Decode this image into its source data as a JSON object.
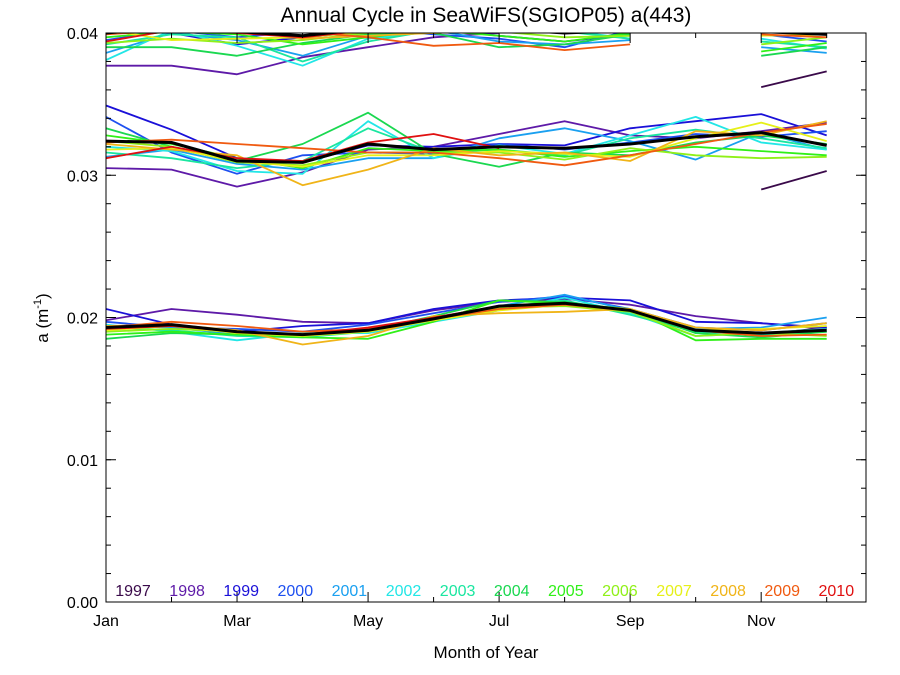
{
  "chart_data": {
    "type": "line",
    "title": "Annual Cycle in SeaWiFS(SGIOP05) a(443)",
    "xlabel": "Month of Year",
    "ylabel": "a (m",
    "ylabel_sup": "-1",
    "ylabel_close": ")",
    "xlim": [
      1,
      12
    ],
    "ylim": [
      0,
      0.04
    ],
    "x_ticks": [
      {
        "x": 1,
        "label": "Jan"
      },
      {
        "x": 3,
        "label": "Mar"
      },
      {
        "x": 5,
        "label": "May"
      },
      {
        "x": 7,
        "label": "Jul"
      },
      {
        "x": 9,
        "label": "Sep"
      },
      {
        "x": 11,
        "label": "Nov"
      }
    ],
    "y_ticks": [
      {
        "y": 0.0,
        "label": "0.00"
      },
      {
        "y": 0.01,
        "label": "0.01"
      },
      {
        "y": 0.02,
        "label": "0.02"
      },
      {
        "y": 0.03,
        "label": "0.03"
      },
      {
        "y": 0.04,
        "label": "0.04"
      }
    ],
    "legend_position": "bottom",
    "climatology_color": "#000000",
    "series": [
      {
        "name": "1997",
        "color": "#3a0a4a",
        "groups": [
          [
            null,
            null,
            null,
            null,
            null,
            null,
            null,
            null,
            null,
            null,
            0.0362,
            0.0373
          ],
          [
            null,
            null,
            null,
            null,
            null,
            null,
            null,
            null,
            null,
            null,
            0.029,
            0.0303
          ],
          [
            null,
            null,
            null,
            null,
            null,
            null,
            null,
            null,
            null,
            null,
            0.0188,
            0.0193
          ]
        ]
      },
      {
        "name": "1998",
        "color": "#5e1aa8",
        "groups": [
          [
            0.0377,
            0.0377,
            0.0371,
            0.0383,
            0.039,
            0.0397,
            0.04,
            null,
            null,
            null,
            null,
            null
          ],
          [
            0.0305,
            0.0304,
            0.0292,
            0.0302,
            0.0318,
            0.032,
            0.0329,
            0.0338,
            0.0328,
            0.0326,
            0.0331,
            0.0337
          ],
          [
            0.0198,
            0.0206,
            0.0202,
            0.0197,
            0.0196,
            0.0205,
            0.0211,
            0.0213,
            0.0209,
            0.0201,
            0.0196,
            0.0192
          ]
        ]
      },
      {
        "name": "1999",
        "color": "#1a10d8",
        "groups": [
          [
            0.0402,
            0.04,
            0.0392,
            0.0397,
            0.0401,
            0.0403,
            0.0398,
            0.0394,
            0.0399,
            null,
            0.0401,
            0.0402
          ],
          [
            0.0349,
            0.0332,
            0.0312,
            0.0309,
            0.0321,
            0.032,
            0.0322,
            0.0321,
            0.0333,
            0.0338,
            0.0343,
            0.0328
          ],
          [
            0.0206,
            0.0195,
            0.019,
            0.0194,
            0.0196,
            0.0206,
            0.0212,
            0.0214,
            0.0212,
            0.0197,
            0.0196,
            0.0193
          ]
        ]
      },
      {
        "name": "2000",
        "color": "#1e50f0",
        "groups": [
          [
            0.0395,
            0.0402,
            0.0397,
            0.0401,
            0.0403,
            0.0399,
            0.0396,
            0.039,
            0.0402,
            null,
            0.0399,
            0.0394
          ],
          [
            0.0341,
            0.0316,
            0.0301,
            0.0314,
            0.0316,
            0.0315,
            0.0322,
            0.0318,
            0.0323,
            0.0329,
            0.0327,
            0.0331
          ],
          [
            0.0197,
            0.0193,
            0.0192,
            0.019,
            0.0195,
            0.0203,
            0.0211,
            0.0215,
            0.0206,
            0.0193,
            0.0191,
            0.0196
          ]
        ]
      },
      {
        "name": "2001",
        "color": "#1aa0f0",
        "groups": [
          [
            0.0386,
            0.04,
            0.0395,
            0.0384,
            0.0398,
            0.0402,
            0.0394,
            0.0392,
            0.0395,
            null,
            0.039,
            0.0386
          ],
          [
            0.0313,
            0.0318,
            0.0308,
            0.0304,
            0.0312,
            0.0312,
            0.0326,
            0.0333,
            0.0324,
            0.0311,
            0.033,
            0.0318
          ],
          [
            0.0194,
            0.0193,
            0.0188,
            0.0187,
            0.0191,
            0.02,
            0.0208,
            0.0216,
            0.0205,
            0.0192,
            0.0193,
            0.02
          ]
        ]
      },
      {
        "name": "2002",
        "color": "#22e6e6",
        "groups": [
          [
            0.0381,
            0.0402,
            0.0391,
            0.0377,
            0.0396,
            0.0401,
            0.0401,
            0.0402,
            0.0396,
            null,
            0.0396,
            0.0389
          ],
          [
            0.032,
            0.0317,
            0.0303,
            0.0301,
            0.0338,
            0.0312,
            0.0321,
            0.0315,
            0.0328,
            0.0341,
            0.0323,
            0.0318
          ],
          [
            0.0195,
            0.019,
            0.0184,
            0.0189,
            0.0189,
            0.0197,
            0.0205,
            0.0214,
            0.0203,
            0.0187,
            0.0189,
            0.0192
          ]
        ]
      },
      {
        "name": "2003",
        "color": "#1ae6a0",
        "groups": [
          [
            0.0392,
            0.0399,
            0.0397,
            0.038,
            0.0394,
            0.0402,
            0.0403,
            0.0401,
            0.0396,
            null,
            0.0394,
            0.039
          ],
          [
            0.0316,
            0.0312,
            0.0305,
            0.031,
            0.0333,
            0.0316,
            0.0318,
            0.0314,
            0.0326,
            0.0332,
            0.0326,
            0.0319
          ],
          [
            0.0193,
            0.0191,
            0.0187,
            0.0186,
            0.019,
            0.0199,
            0.0207,
            0.0212,
            0.0202,
            0.019,
            0.0188,
            0.019
          ]
        ]
      },
      {
        "name": "2004",
        "color": "#1ad850",
        "groups": [
          [
            0.039,
            0.039,
            0.0384,
            0.0393,
            0.0399,
            0.04,
            0.039,
            0.0392,
            0.0399,
            null,
            0.0384,
            0.039
          ],
          [
            0.0333,
            0.032,
            0.031,
            0.0322,
            0.0344,
            0.0315,
            0.0306,
            0.0316,
            0.0314,
            0.0323,
            0.0328,
            0.0322
          ],
          [
            0.0185,
            0.0189,
            0.0188,
            0.0188,
            0.0191,
            0.0201,
            0.0212,
            0.0211,
            0.0205,
            0.0189,
            0.0186,
            0.019
          ]
        ]
      },
      {
        "name": "2005",
        "color": "#30f018",
        "groups": [
          [
            0.0397,
            0.0401,
            0.0399,
            0.0392,
            0.0397,
            0.0402,
            0.0398,
            0.0394,
            0.04,
            null,
            0.0387,
            0.0393
          ],
          [
            0.0328,
            0.0322,
            0.0312,
            0.0305,
            0.0319,
            0.0317,
            0.0318,
            0.0313,
            0.0317,
            0.032,
            0.0317,
            0.0314
          ],
          [
            0.0188,
            0.019,
            0.0188,
            0.0186,
            0.0185,
            0.0197,
            0.0212,
            0.021,
            0.0206,
            0.0184,
            0.0185,
            0.0185
          ]
        ]
      },
      {
        "name": "2006",
        "color": "#90f018",
        "groups": [
          [
            0.0393,
            0.0396,
            0.0393,
            0.0395,
            0.04,
            0.0401,
            0.0401,
            0.0397,
            0.0398,
            null,
            0.0392,
            0.0397
          ],
          [
            0.0324,
            0.032,
            0.0309,
            0.0307,
            0.0316,
            0.0316,
            0.0316,
            0.0311,
            0.0319,
            0.0314,
            0.0312,
            0.0313
          ],
          [
            0.019,
            0.0192,
            0.019,
            0.0188,
            0.0191,
            0.0198,
            0.0207,
            0.0208,
            0.0204,
            0.0187,
            0.0189,
            0.0187
          ]
        ]
      },
      {
        "name": "2007",
        "color": "#e6f018",
        "groups": [
          [
            0.0402,
            0.0395,
            0.0396,
            0.0397,
            0.0401,
            0.04,
            0.0402,
            0.0403,
            0.0401,
            null,
            0.0398,
            0.0399
          ],
          [
            0.0318,
            0.0319,
            0.031,
            0.0306,
            0.0314,
            0.0314,
            0.0317,
            0.0315,
            0.0313,
            0.0326,
            0.0337,
            0.0324
          ],
          [
            0.0191,
            0.0194,
            0.0189,
            0.0187,
            0.019,
            0.0198,
            0.0205,
            0.0209,
            0.0206,
            0.0191,
            0.0192,
            0.0194
          ]
        ]
      },
      {
        "name": "2008",
        "color": "#f0b418",
        "groups": [
          [
            0.0401,
            0.0402,
            0.0402,
            0.0396,
            0.0398,
            0.04,
            0.0402,
            0.0402,
            0.0402,
            null,
            0.0402,
            0.0403
          ],
          [
            0.0322,
            0.0318,
            0.0314,
            0.0293,
            0.0304,
            0.0319,
            0.0314,
            0.0316,
            0.031,
            0.0331,
            0.0328,
            0.0338
          ],
          [
            0.0194,
            0.0195,
            0.0191,
            0.0181,
            0.0187,
            0.0201,
            0.0203,
            0.0204,
            0.0206,
            0.0193,
            0.0191,
            0.0196
          ]
        ]
      },
      {
        "name": "2009",
        "color": "#f05a10",
        "groups": [
          [
            0.0399,
            0.0402,
            0.0403,
            0.0401,
            0.0397,
            0.0391,
            0.0393,
            0.0388,
            0.0392,
            null,
            0.0399,
            0.0397
          ],
          [
            0.0323,
            0.0325,
            0.0322,
            0.0319,
            0.0316,
            0.0316,
            0.0312,
            0.0307,
            0.0314,
            0.0322,
            0.033,
            0.0336
          ],
          [
            0.0193,
            0.0197,
            0.0194,
            0.019,
            0.0192,
            0.0199,
            0.0206,
            0.0209,
            0.0205,
            0.0191,
            0.0187,
            0.0188
          ]
        ]
      },
      {
        "name": "2010",
        "color": "#e01010",
        "groups": [
          [
            0.0394,
            0.0402,
            0.04,
            0.0397,
            0.0402,
            0.0403,
            0.0401,
            null,
            null,
            null,
            null,
            null
          ],
          [
            0.0312,
            0.032,
            0.0312,
            0.031,
            0.0323,
            0.0329,
            0.0319,
            null,
            null,
            null,
            null,
            null
          ],
          [
            0.0192,
            0.0194,
            0.019,
            0.0188,
            0.0193,
            0.02,
            0.0208,
            null,
            null,
            null,
            null,
            null
          ]
        ]
      },
      {
        "name": "",
        "color": "#000000",
        "thick": true,
        "groups": [
          [
            0.04,
            0.0404,
            0.0401,
            0.0398,
            0.0403,
            0.0405,
            0.0403,
            0.04,
            0.0402,
            null,
            0.0401,
            0.0399
          ],
          [
            0.0324,
            0.0323,
            0.031,
            0.0309,
            0.0322,
            0.0318,
            0.032,
            0.0319,
            0.0322,
            0.0327,
            0.033,
            0.0321
          ],
          [
            0.0193,
            0.0195,
            0.019,
            0.0188,
            0.0191,
            0.0199,
            0.0208,
            0.021,
            0.0205,
            0.0191,
            0.0189,
            0.0191
          ]
        ]
      }
    ]
  }
}
